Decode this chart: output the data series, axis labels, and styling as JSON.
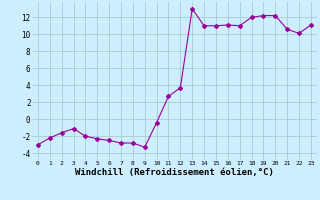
{
  "x": [
    0,
    1,
    2,
    3,
    4,
    5,
    6,
    7,
    8,
    9,
    10,
    11,
    12,
    13,
    14,
    15,
    16,
    17,
    18,
    19,
    20,
    21,
    22,
    23
  ],
  "y": [
    -3.0,
    -2.2,
    -1.6,
    -1.1,
    -2.0,
    -2.3,
    -2.5,
    -2.8,
    -2.8,
    -3.3,
    -0.4,
    2.7,
    3.7,
    13.0,
    11.0,
    11.0,
    11.1,
    11.0,
    12.0,
    12.2,
    12.2,
    10.6,
    10.1,
    11.1
  ],
  "line_color": "#990099",
  "marker": "D",
  "marker_size": 2.0,
  "background_color": "#cceeff",
  "grid_color": "#aacccc",
  "xlabel": "Windchill (Refroidissement éolien,°C)",
  "xlabel_fontsize": 6.5,
  "yticks": [
    -4,
    -2,
    0,
    2,
    4,
    6,
    8,
    10,
    12
  ],
  "ytick_labels": [
    "-4",
    "-2",
    "0",
    "2",
    "4",
    "6",
    "8",
    "10",
    "12"
  ],
  "xlim": [
    -0.5,
    23.5
  ],
  "ylim": [
    -4.8,
    13.8
  ]
}
